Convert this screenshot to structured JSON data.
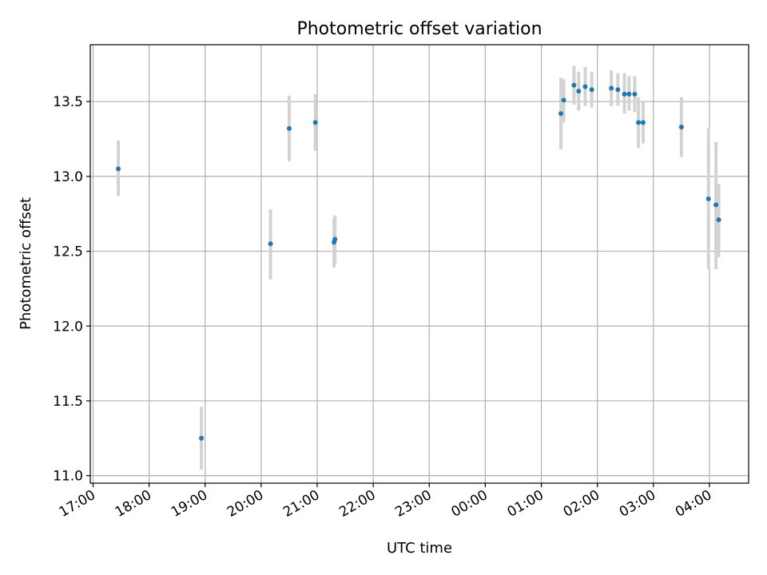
{
  "chart_data": {
    "type": "scatter",
    "title": "Photometric offset variation",
    "xlabel": "UTC time",
    "ylabel": "Photometric offset",
    "x_axis": {
      "kind": "time",
      "range": [
        "16:57",
        "04:42 (+1 day)"
      ],
      "tick_labels": [
        "17:00",
        "18:00",
        "19:00",
        "20:00",
        "21:00",
        "22:00",
        "23:00",
        "00:00",
        "01:00",
        "02:00",
        "03:00",
        "04:00"
      ]
    },
    "y_axis": {
      "range": [
        10.95,
        13.88
      ],
      "tick_values": [
        11.0,
        11.5,
        12.0,
        12.5,
        13.0,
        13.5
      ],
      "tick_labels": [
        "11.0",
        "11.5",
        "12.0",
        "12.5",
        "13.0",
        "13.5"
      ]
    },
    "grid": true,
    "point_color": "#1f77b4",
    "errorbar_color": "#d3d3d3",
    "points": [
      {
        "t": "17:27",
        "y": 13.05,
        "lo": 12.87,
        "hi": 13.24
      },
      {
        "t": "18:56",
        "y": 11.25,
        "lo": 11.04,
        "hi": 11.46
      },
      {
        "t": "20:10",
        "y": 12.55,
        "lo": 12.31,
        "hi": 12.78
      },
      {
        "t": "20:30",
        "y": 13.32,
        "lo": 13.1,
        "hi": 13.54
      },
      {
        "t": "20:58",
        "y": 13.36,
        "lo": 13.17,
        "hi": 13.55
      },
      {
        "t": "21:18",
        "y": 12.56,
        "lo": 12.39,
        "hi": 12.72
      },
      {
        "t": "21:19",
        "y": 12.58,
        "lo": 12.42,
        "hi": 12.74
      },
      {
        "t": "01:21",
        "y": 13.42,
        "lo": 13.18,
        "hi": 13.66
      },
      {
        "t": "01:24",
        "y": 13.51,
        "lo": 13.36,
        "hi": 13.65
      },
      {
        "t": "01:35",
        "y": 13.61,
        "lo": 13.48,
        "hi": 13.74
      },
      {
        "t": "01:40",
        "y": 13.57,
        "lo": 13.44,
        "hi": 13.7
      },
      {
        "t": "01:47",
        "y": 13.6,
        "lo": 13.47,
        "hi": 13.73
      },
      {
        "t": "01:54",
        "y": 13.58,
        "lo": 13.46,
        "hi": 13.7
      },
      {
        "t": "02:15",
        "y": 13.59,
        "lo": 13.47,
        "hi": 13.71
      },
      {
        "t": "02:22",
        "y": 13.58,
        "lo": 13.47,
        "hi": 13.69
      },
      {
        "t": "02:29",
        "y": 13.55,
        "lo": 13.42,
        "hi": 13.69
      },
      {
        "t": "02:34",
        "y": 13.55,
        "lo": 13.44,
        "hi": 13.67
      },
      {
        "t": "02:40",
        "y": 13.55,
        "lo": 13.43,
        "hi": 13.67
      },
      {
        "t": "02:44",
        "y": 13.36,
        "lo": 13.19,
        "hi": 13.53
      },
      {
        "t": "02:49",
        "y": 13.36,
        "lo": 13.22,
        "hi": 13.5
      },
      {
        "t": "03:30",
        "y": 13.33,
        "lo": 13.13,
        "hi": 13.53
      },
      {
        "t": "03:59",
        "y": 12.85,
        "lo": 12.38,
        "hi": 13.32
      },
      {
        "t": "04:07",
        "y": 12.81,
        "lo": 12.38,
        "hi": 13.23
      },
      {
        "t": "04:10",
        "y": 12.71,
        "lo": 12.46,
        "hi": 12.95
      }
    ]
  }
}
